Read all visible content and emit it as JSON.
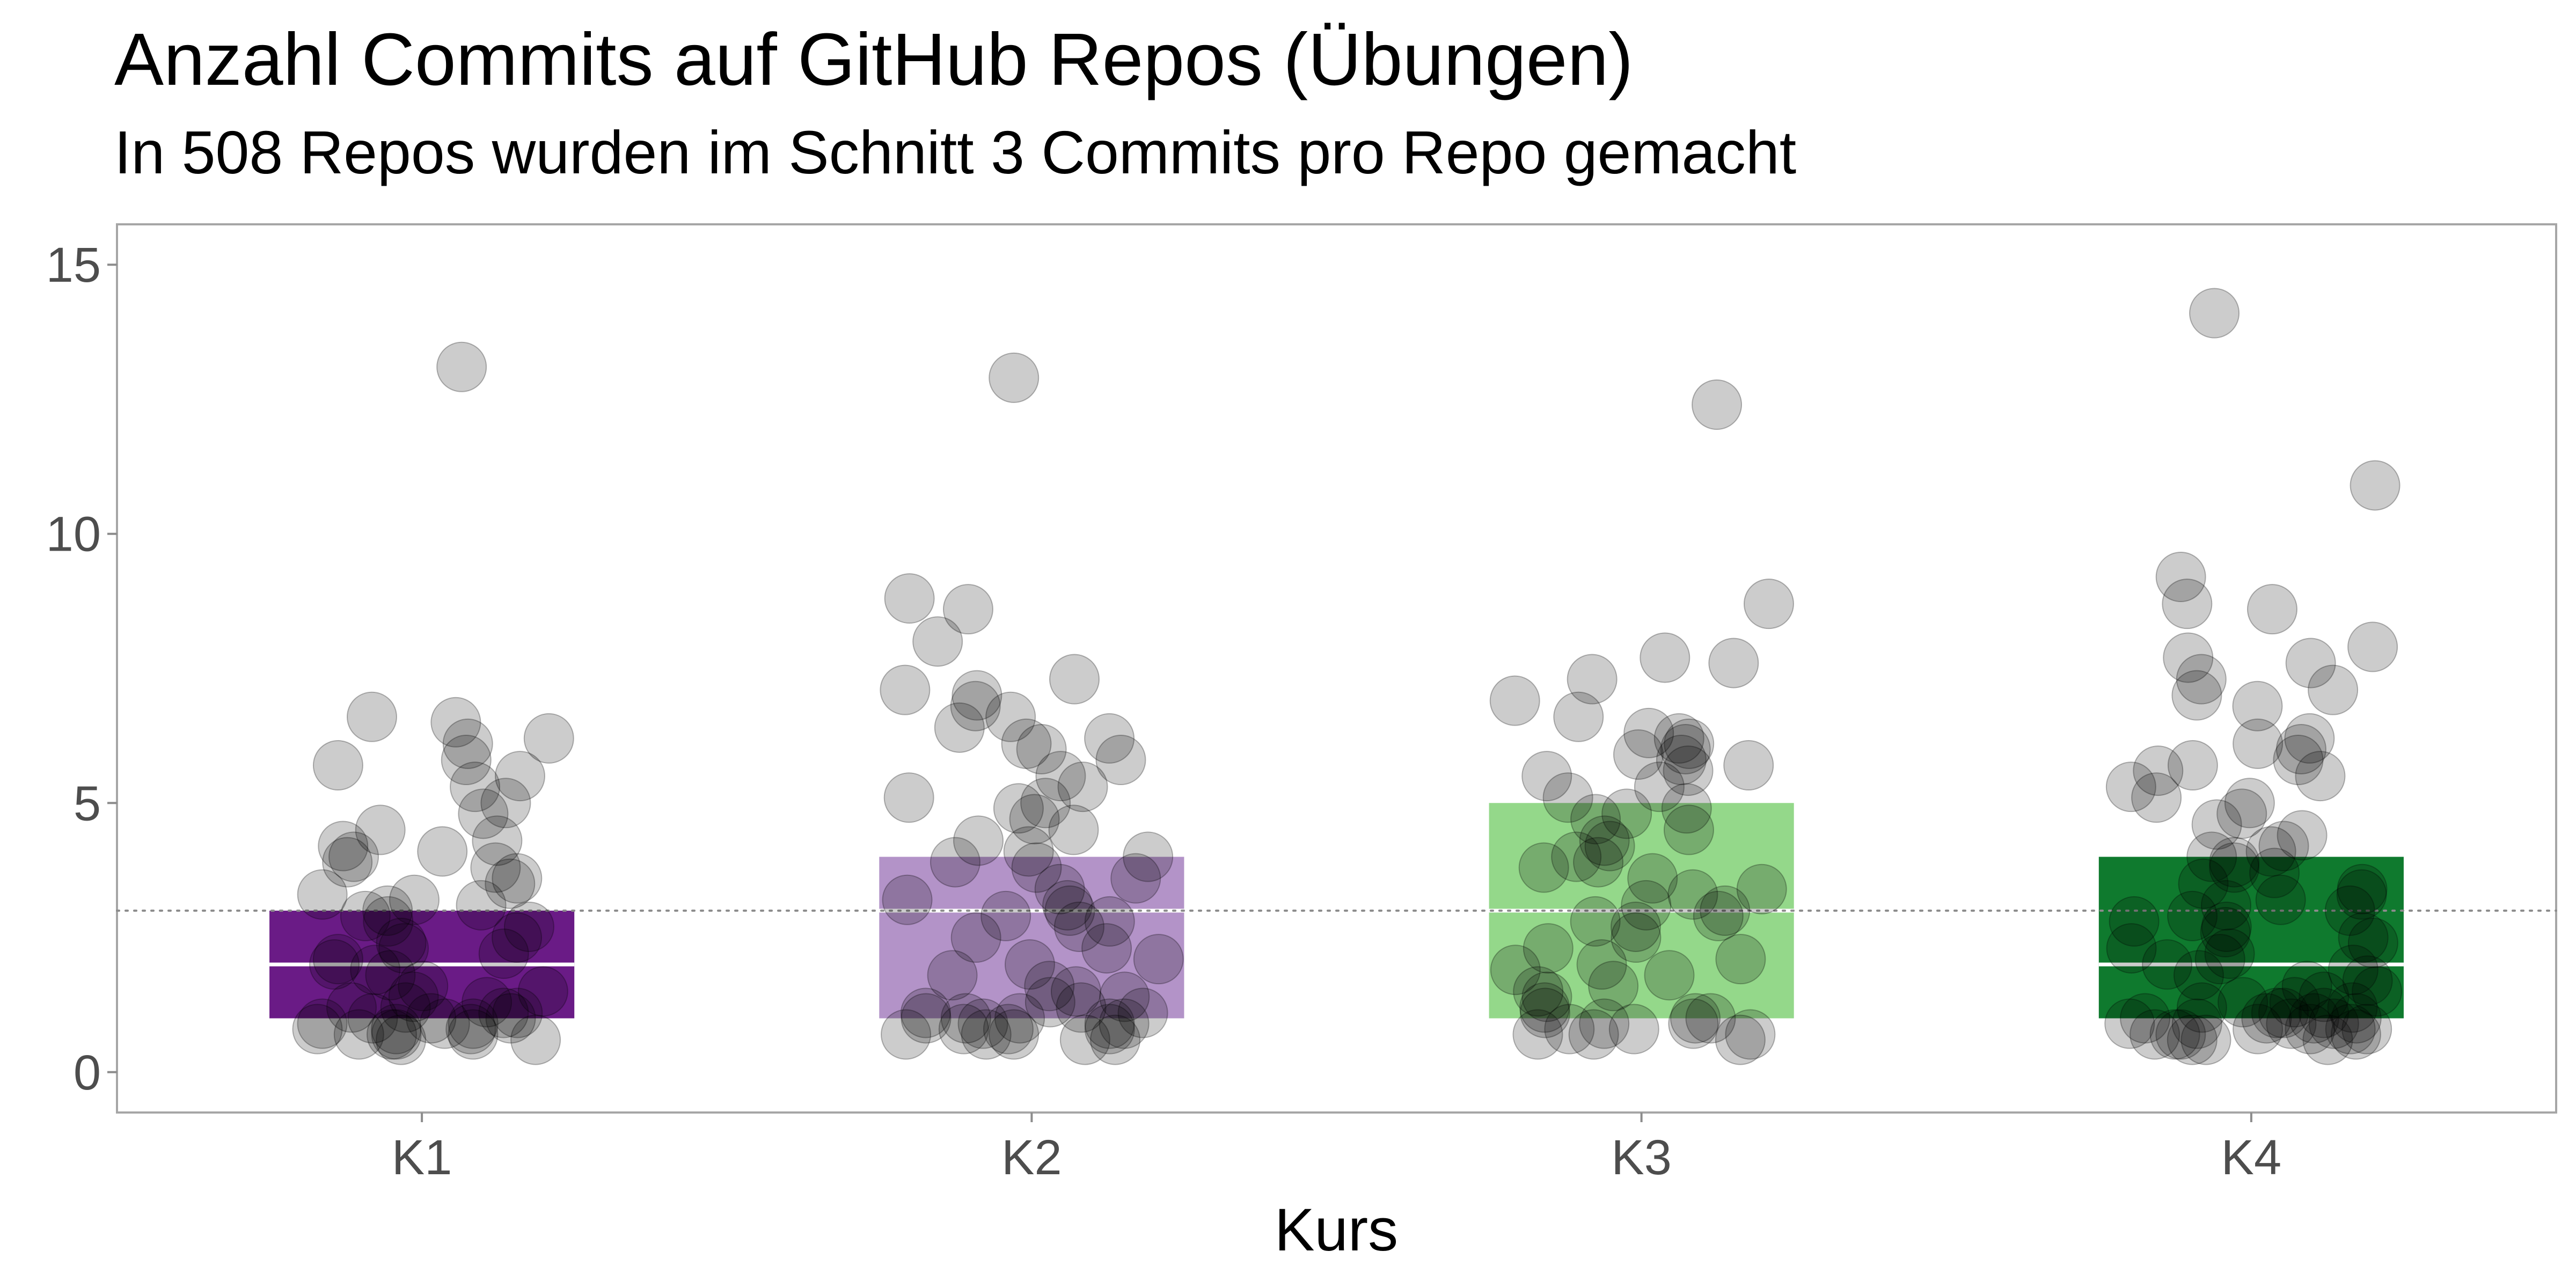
{
  "chart_data": {
    "type": "box-with-jitter",
    "title": "Anzahl Commits auf GitHub Repos (Übungen)",
    "subtitle": "In 508 Repos wurden im Schnitt 3 Commits pro Repo gemacht",
    "xlabel": "Kurs",
    "ylabel": "",
    "categories": [
      "K1",
      "K2",
      "K3",
      "K4"
    ],
    "ylim": [
      -0.75,
      15.75
    ],
    "yticks": [
      0,
      5,
      10,
      15
    ],
    "grid": false,
    "reference_line": {
      "value": 3,
      "style": "dotted"
    },
    "boxes": [
      {
        "category": "K1",
        "q1": 1,
        "median": 2,
        "q3": 3,
        "color": "#6a1b86"
      },
      {
        "category": "K2",
        "q1": 1,
        "median": 3,
        "q3": 4,
        "color": "#b393c8"
      },
      {
        "category": "K3",
        "q1": 1,
        "median": 3,
        "q3": 5,
        "color": "#94d88a"
      },
      {
        "category": "K4",
        "q1": 1,
        "median": 2,
        "q3": 4,
        "color": "#0f7a2e"
      }
    ],
    "points": [
      {
        "category": "K1",
        "values": [
          13.1,
          6.6,
          6.5,
          6.2,
          6.1,
          5.8,
          5.7,
          5.5,
          5.3,
          5.0,
          4.8,
          4.5,
          4.3,
          4.2,
          4.1,
          4.0,
          3.9,
          3.8,
          3.6,
          3.5,
          3.3,
          3.2,
          3.1,
          3.0,
          2.9,
          2.8,
          2.7,
          2.5,
          2.4,
          2.3,
          2.2,
          2.1,
          2.0,
          1.9,
          1.8,
          1.6,
          1.5,
          1.4,
          1.3,
          1.2,
          1.2,
          1.1,
          1.1,
          1.0,
          1.0,
          1.0,
          0.9,
          0.9,
          0.9,
          0.8,
          0.8,
          0.8,
          0.7,
          0.7,
          0.7,
          0.7,
          0.6,
          0.6
        ]
      },
      {
        "category": "K2",
        "values": [
          12.9,
          8.8,
          8.6,
          8.0,
          7.3,
          7.1,
          7.0,
          6.8,
          6.6,
          6.4,
          6.2,
          6.1,
          6.0,
          5.8,
          5.5,
          5.3,
          5.1,
          5.0,
          4.9,
          4.7,
          4.5,
          4.3,
          4.1,
          4.0,
          3.9,
          3.8,
          3.6,
          3.4,
          3.2,
          3.1,
          3.0,
          2.9,
          2.8,
          2.7,
          2.5,
          2.3,
          2.1,
          2.0,
          1.8,
          1.6,
          1.5,
          1.4,
          1.3,
          1.2,
          1.1,
          1.1,
          1.0,
          1.0,
          1.0,
          0.9,
          0.9,
          0.9,
          0.8,
          0.8,
          0.8,
          0.7,
          0.7,
          0.7,
          0.6,
          0.6
        ]
      },
      {
        "category": "K3",
        "values": [
          12.4,
          8.7,
          7.7,
          7.6,
          7.3,
          6.9,
          6.6,
          6.3,
          6.2,
          6.1,
          6.0,
          5.9,
          5.8,
          5.7,
          5.6,
          5.5,
          5.3,
          5.1,
          4.9,
          4.8,
          4.7,
          4.5,
          4.3,
          4.2,
          4.0,
          3.9,
          3.8,
          3.6,
          3.4,
          3.3,
          3.1,
          3.0,
          2.9,
          2.8,
          2.7,
          2.5,
          2.3,
          2.1,
          2.0,
          1.9,
          1.8,
          1.6,
          1.5,
          1.4,
          1.2,
          1.1,
          1.0,
          1.0,
          0.9,
          0.9,
          0.8,
          0.8,
          0.7,
          0.7,
          0.7,
          0.6
        ]
      },
      {
        "category": "K4",
        "values": [
          14.1,
          10.9,
          9.2,
          8.7,
          8.6,
          7.9,
          7.7,
          7.6,
          7.3,
          7.1,
          7.0,
          6.8,
          6.2,
          6.1,
          6.0,
          5.8,
          5.7,
          5.6,
          5.5,
          5.3,
          5.1,
          5.0,
          4.8,
          4.6,
          4.4,
          4.2,
          4.1,
          4.0,
          3.9,
          3.8,
          3.7,
          3.5,
          3.4,
          3.3,
          3.2,
          3.1,
          3.0,
          2.9,
          2.8,
          2.7,
          2.6,
          2.5,
          2.4,
          2.3,
          2.2,
          2.1,
          2.0,
          1.9,
          1.8,
          1.7,
          1.6,
          1.5,
          1.4,
          1.3,
          1.3,
          1.2,
          1.2,
          1.1,
          1.1,
          1.1,
          1.0,
          1.0,
          1.0,
          1.0,
          0.9,
          0.9,
          0.9,
          0.9,
          0.8,
          0.8,
          0.8,
          0.8,
          0.7,
          0.7,
          0.7,
          0.7,
          0.6,
          0.6,
          0.6
        ]
      }
    ],
    "point_color": "#000000",
    "point_alpha": 0.2
  }
}
